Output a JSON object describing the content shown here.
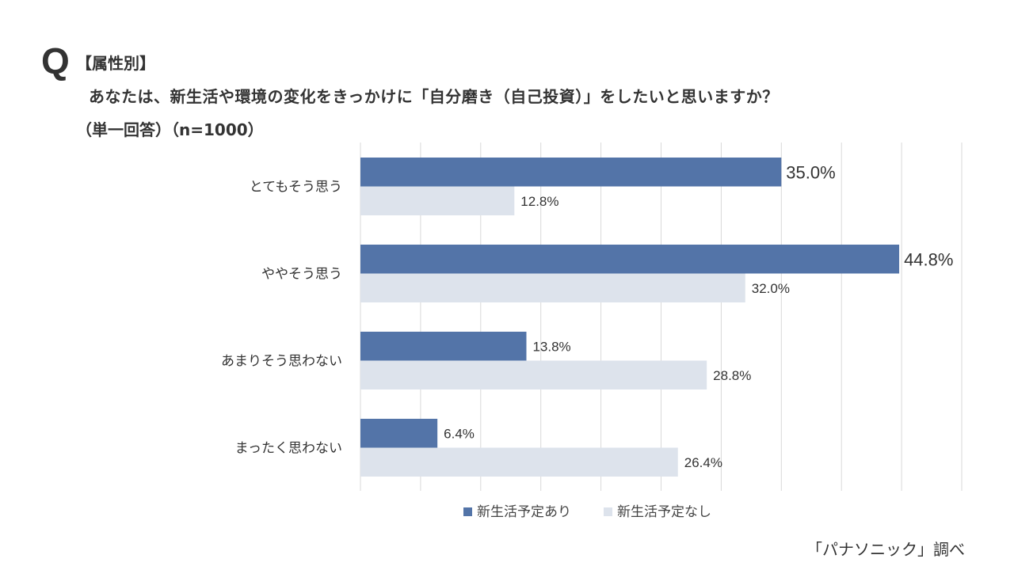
{
  "header": {
    "q_mark": "Q",
    "attribute": "【属性別】",
    "question": "あなたは、新生活や環境の変化をきっかけに「自分磨き（自己投資）」をしたいと思いますか？",
    "meta": "（単一回答）（n=1000）"
  },
  "source": "「パナソニック」調べ",
  "chart_data": {
    "type": "bar",
    "orientation": "horizontal",
    "title": "",
    "categories": [
      "とてもそう思う",
      "ややそう思う",
      "あまりそう思わない",
      "まったく思わない"
    ],
    "series": [
      {
        "name": "新生活予定あり",
        "color": "#5374A8",
        "values": [
          35.0,
          44.8,
          13.8,
          6.4
        ]
      },
      {
        "name": "新生活予定なし",
        "color": "#DDE3EC",
        "values": [
          12.8,
          32.0,
          28.8,
          26.4
        ]
      }
    ],
    "value_suffix": "%",
    "xlim": [
      0,
      50
    ],
    "grid_step": 5,
    "grid": true,
    "legend": "bottom-center"
  }
}
